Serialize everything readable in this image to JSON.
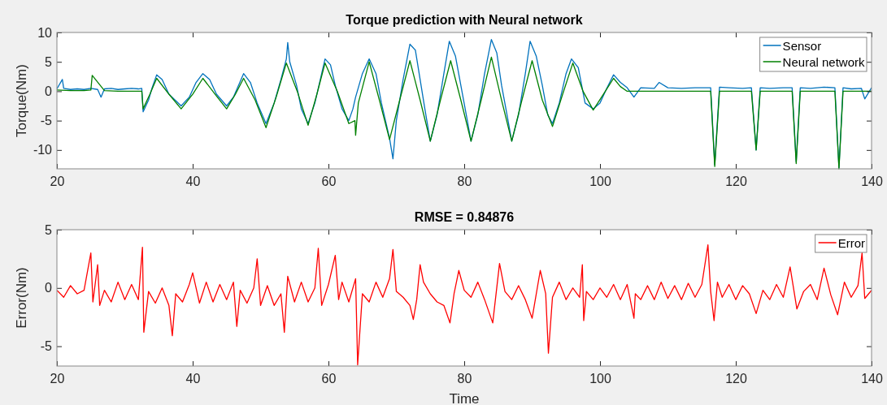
{
  "chart_data": [
    {
      "type": "line",
      "title": "Torque prediction with Neural network",
      "ylabel": "Torque(Nm)",
      "xlim": [
        20,
        140
      ],
      "xticks": [
        20,
        40,
        60,
        80,
        100,
        120,
        140
      ],
      "ylim": [
        -13.2,
        10
      ],
      "yticks": [
        -10,
        -5,
        0,
        5,
        10
      ],
      "legend": "top right",
      "grid": false,
      "series": [
        {
          "name": "Sensor",
          "color": "#0072bd",
          "x": [
            20,
            20.8,
            21,
            22,
            23,
            24,
            25,
            26,
            26.5,
            27,
            28,
            29,
            30,
            31,
            32,
            32.5,
            32.7,
            33.5,
            34,
            34.7,
            35.5,
            36.5,
            38.3,
            39.5,
            40.5,
            41.5,
            42.5,
            43.5,
            45,
            46,
            47.5,
            48.5,
            49.5,
            50.8,
            52,
            53,
            53.8,
            54,
            54.3,
            55.3,
            56,
            57,
            58,
            59,
            59.5,
            60.3,
            61,
            62,
            63,
            63.6,
            64,
            65,
            66,
            67,
            67.8,
            69,
            69.5,
            70,
            71,
            72,
            72.8,
            73.5,
            74.2,
            75,
            76,
            77,
            77.8,
            78.7,
            79.5,
            80.3,
            81,
            82,
            83,
            84,
            84.8,
            85.5,
            86.3,
            87,
            88,
            89,
            89.7,
            90.6,
            91.5,
            92.3,
            93,
            94,
            95,
            95.8,
            96.8,
            97.8,
            99,
            100,
            101,
            102,
            103,
            104,
            105,
            106,
            108,
            108.7,
            110,
            112,
            114,
            116.3,
            116.9,
            117.6,
            119,
            121,
            122.3,
            123,
            123.6,
            125,
            127,
            128.3,
            128.9,
            129.5,
            131,
            133,
            134.6,
            135.2,
            135.8,
            137,
            138.5,
            139,
            140
          ],
          "values": [
            0.4,
            2,
            0.5,
            0.3,
            0.4,
            0.3,
            0.5,
            0.3,
            -1,
            0.4,
            0.5,
            0.3,
            0.4,
            0.5,
            0.4,
            0.5,
            -3.5,
            -1.5,
            0.5,
            2.8,
            2,
            -0.5,
            -2.5,
            -1,
            1.5,
            3,
            2,
            -0.5,
            -2.5,
            -1,
            3,
            1.5,
            -2,
            -5.5,
            -2,
            2,
            5.5,
            8.3,
            5,
            1,
            -3,
            -5.5,
            -2,
            3,
            5.5,
            4.5,
            1,
            -3,
            -5,
            -3,
            -1,
            3,
            5.5,
            3,
            -2,
            -8,
            -11.5,
            -5,
            2,
            8,
            7,
            2,
            -3,
            -8.5,
            -4,
            3,
            8.5,
            6,
            1,
            -4,
            -8.5,
            -4,
            3,
            8.8,
            6.5,
            1,
            -4,
            -8.5,
            -4,
            3,
            8.5,
            6,
            1,
            -4,
            -5.5,
            -2,
            3,
            5.5,
            4,
            -2,
            -3,
            -2,
            0.5,
            2.8,
            1.5,
            0.6,
            -1,
            0.6,
            0.5,
            1.5,
            0.6,
            0.5,
            0.6,
            0.6,
            -12.5,
            0.7,
            0.6,
            0.5,
            0.6,
            -10,
            0.6,
            0.5,
            0.6,
            0.6,
            -12,
            0.6,
            0.5,
            0.7,
            0.6,
            -13,
            0.6,
            0.4,
            0.5,
            -1.3,
            0.6
          ]
        },
        {
          "name": "Neural network",
          "color": "#008000",
          "x": [
            20,
            22,
            24,
            25,
            25.2,
            27,
            29,
            31,
            32.5,
            32.7,
            33.7,
            34.7,
            36.5,
            38.3,
            40,
            41.5,
            43.3,
            45,
            46.3,
            47.5,
            49.2,
            50.8,
            52.3,
            53.8,
            55.4,
            57,
            58.3,
            59.5,
            61.3,
            63,
            63.9,
            64,
            64.4,
            66,
            67.5,
            69,
            70.5,
            72,
            73.5,
            75,
            76.5,
            78,
            79.5,
            81,
            82.5,
            84,
            85.5,
            87,
            88.5,
            90,
            91.5,
            93,
            94.5,
            96,
            97.5,
            99,
            100.5,
            102,
            103,
            104,
            108,
            112,
            116.3,
            116.9,
            117.6,
            122.3,
            123,
            123.6,
            128.3,
            128.9,
            129.5,
            134.6,
            135.2,
            135.8,
            140
          ],
          "values": [
            0.2,
            0.1,
            0.1,
            0.2,
            2.7,
            0.1,
            0,
            0,
            0,
            -3,
            -0.5,
            2.2,
            -0.5,
            -3,
            -0.5,
            2.2,
            -0.5,
            -3,
            -0.5,
            2.2,
            -1.5,
            -6.2,
            -1,
            4.8,
            0,
            -5.8,
            -0.5,
            4.8,
            0,
            -5.5,
            -5,
            -7.5,
            -2,
            5,
            -1.5,
            -8.2,
            -1.5,
            5.2,
            -1.5,
            -8.5,
            -1.5,
            5.2,
            -1.5,
            -8.5,
            -1.5,
            5.8,
            -1.5,
            -8.5,
            -1.5,
            5.2,
            -1.5,
            -6,
            -0.5,
            4.8,
            0,
            -3.2,
            -0.5,
            2.2,
            0.8,
            0,
            0,
            0,
            0,
            -12.8,
            0,
            0,
            -10,
            0,
            0,
            -12.3,
            0,
            0,
            -13.2,
            0,
            0
          ]
        }
      ]
    },
    {
      "type": "line",
      "title": "RMSE = 0.84876",
      "xlabel": "Time",
      "ylabel": "Error(Nm)",
      "xlim": [
        20,
        140
      ],
      "xticks": [
        20,
        40,
        60,
        80,
        100,
        120,
        140
      ],
      "ylim": [
        -6.7,
        5
      ],
      "yticks": [
        -5,
        0,
        5
      ],
      "legend": "top right",
      "grid": false,
      "series": [
        {
          "name": "Error",
          "color": "#ff0000",
          "x": [
            20,
            21,
            22,
            23,
            24,
            25,
            25.3,
            26,
            26.3,
            27,
            28,
            29,
            30,
            31,
            32,
            32.6,
            32.8,
            33.5,
            34.5,
            35.5,
            36.5,
            37,
            37.5,
            38.5,
            39.5,
            40,
            41,
            42,
            43,
            44,
            45,
            46,
            46.5,
            47,
            48,
            49,
            49.5,
            50,
            51,
            52,
            53,
            53.5,
            54,
            55,
            56,
            57,
            58,
            58.5,
            59,
            60,
            61,
            61.5,
            62,
            63,
            64,
            64.3,
            65,
            66,
            67,
            68,
            69,
            69.5,
            70,
            71,
            72,
            72.5,
            73,
            73.5,
            74,
            75,
            76,
            77,
            77.9,
            78.5,
            79.2,
            80,
            81,
            82,
            83,
            84.2,
            85.2,
            86,
            87,
            88,
            89,
            90,
            91.2,
            92,
            92.4,
            93,
            94,
            95,
            96,
            97,
            97.4,
            97.6,
            98,
            99,
            100,
            101,
            102,
            103,
            104,
            105,
            105.2,
            106,
            107,
            108,
            109,
            110,
            111,
            112,
            113,
            114,
            115,
            115.9,
            116.3,
            116.8,
            117.3,
            118,
            119,
            120,
            121,
            122,
            123,
            124,
            125,
            126,
            127,
            128,
            129,
            130,
            131,
            132,
            133,
            134,
            135,
            136,
            137,
            138,
            138.6,
            139,
            140
          ],
          "values": [
            -0.2,
            -0.8,
            0.2,
            -0.5,
            -0.2,
            3,
            -1.2,
            2,
            -1.5,
            -0.2,
            -1.2,
            0.5,
            -1,
            0.3,
            -1,
            3.5,
            -3.8,
            -0.3,
            -1.3,
            0,
            -1.5,
            -4.1,
            -0.5,
            -1.2,
            0.3,
            1.3,
            -1.3,
            0.5,
            -1.2,
            0.3,
            -1,
            0.5,
            -3.3,
            -0.2,
            -1.3,
            0,
            2.5,
            -1.5,
            0.2,
            -1.5,
            -0.5,
            -3.8,
            1,
            -1.2,
            0.5,
            -1.2,
            0,
            3.4,
            -1.5,
            0.3,
            2.8,
            -1,
            0.5,
            -1.2,
            0.8,
            -6.6,
            -0.5,
            -1.2,
            0.5,
            -0.8,
            0.8,
            3.3,
            -0.3,
            -0.8,
            -1.5,
            -2.7,
            -1,
            2,
            0.5,
            -0.5,
            -1.2,
            -1.5,
            -3,
            -0.5,
            1.5,
            -0.2,
            -0.8,
            0.5,
            -1,
            -3,
            2.1,
            -0.3,
            -1,
            0.2,
            -1,
            -2.6,
            1.5,
            -0.5,
            -5.6,
            -0.8,
            0.5,
            -1,
            0,
            -0.8,
            2,
            -2.8,
            -0.3,
            -1,
            0,
            -0.8,
            0.3,
            -1,
            0.3,
            -2.6,
            -0.5,
            -1,
            0.2,
            -1,
            0.5,
            -0.9,
            0.2,
            -1,
            0.4,
            -0.8,
            0.3,
            3.7,
            -0.3,
            -2.8,
            0.5,
            -0.8,
            0.3,
            -1,
            0.2,
            -0.5,
            -2.2,
            -0.2,
            -1,
            0.3,
            -0.8,
            1.8,
            -1.8,
            -0.3,
            0.3,
            -1,
            1.7,
            -0.6,
            -2.3,
            0.5,
            -0.8,
            0.2,
            3,
            -0.9,
            -0.2
          ]
        }
      ]
    }
  ]
}
